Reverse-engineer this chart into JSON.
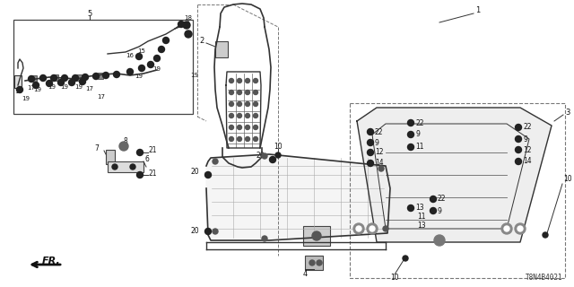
{
  "bg_color": "#ffffff",
  "diagram_id": "T8N4B4021",
  "line_color": "#333333",
  "label_color": "#111111",
  "label_fs": 6.0,
  "small_fs": 5.5
}
